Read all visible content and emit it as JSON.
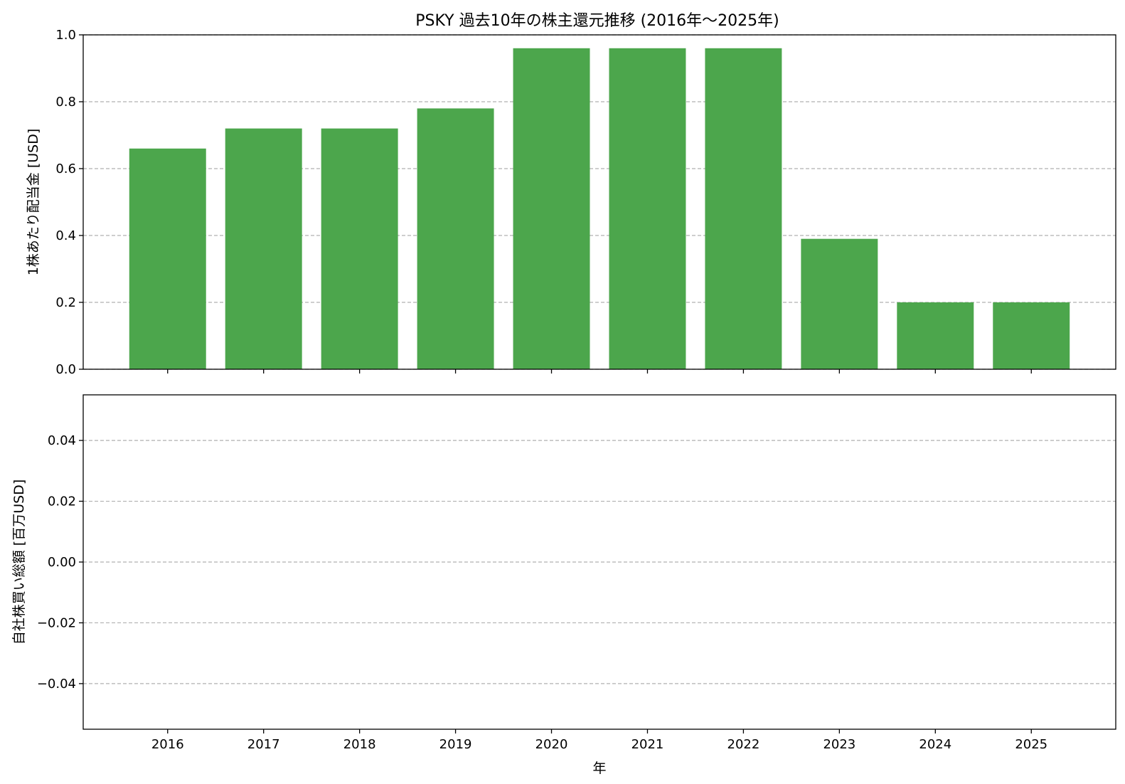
{
  "chart_data": [
    {
      "type": "bar",
      "title": "PSKY 過去10年の株主還元推移 (2016年～2025年)",
      "ylabel": "1株あたり配当金 [USD]",
      "xlabel": "",
      "categories": [
        "2016",
        "2017",
        "2018",
        "2019",
        "2020",
        "2021",
        "2022",
        "2023",
        "2024",
        "2025"
      ],
      "values": [
        0.66,
        0.72,
        0.72,
        0.78,
        0.96,
        0.96,
        0.96,
        0.39,
        0.2,
        0.2
      ],
      "ylim": [
        0,
        1.0
      ],
      "yticks": [
        "0.0",
        "0.2",
        "0.4",
        "0.6",
        "0.8",
        "1.0"
      ],
      "grid": "y dashed",
      "color": "#4ca64c"
    },
    {
      "type": "bar",
      "title": "",
      "ylabel": "自社株買い総額 [百万USD]",
      "xlabel": "年",
      "categories": [
        "2016",
        "2017",
        "2018",
        "2019",
        "2020",
        "2021",
        "2022",
        "2023",
        "2024",
        "2025"
      ],
      "values": [
        0,
        0,
        0,
        0,
        0,
        0,
        0,
        0,
        0,
        0
      ],
      "ylim": [
        -0.055,
        0.055
      ],
      "yticks": [
        "−0.04",
        "−0.02",
        "0.00",
        "0.02",
        "0.04"
      ],
      "grid": "y dashed",
      "color": "#4ca64c"
    }
  ]
}
